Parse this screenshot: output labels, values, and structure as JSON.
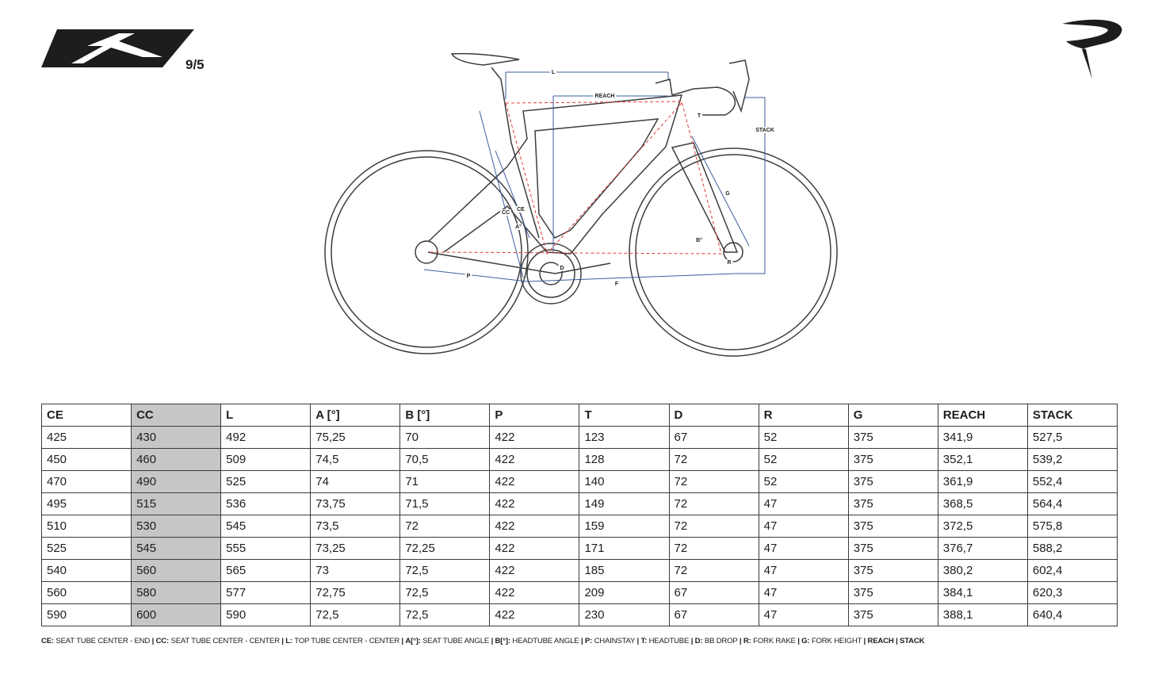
{
  "header": {
    "model_number": "9/5"
  },
  "diagram": {
    "labels": [
      "L",
      "REACH",
      "STACK",
      "T",
      "G",
      "CC",
      "CE",
      "A°",
      "B°",
      "P",
      "F",
      "D",
      "R"
    ]
  },
  "table": {
    "headers": [
      "CE",
      "CC",
      "L",
      "A [°]",
      "B [°]",
      "P",
      "T",
      "D",
      "R",
      "G",
      "REACH",
      "STACK"
    ],
    "rows": [
      [
        "425",
        "430",
        "492",
        "75,25",
        "70",
        "422",
        "123",
        "67",
        "52",
        "375",
        "341,9",
        "527,5"
      ],
      [
        "450",
        "460",
        "509",
        "74,5",
        "70,5",
        "422",
        "128",
        "72",
        "52",
        "375",
        "352,1",
        "539,2"
      ],
      [
        "470",
        "490",
        "525",
        "74",
        "71",
        "422",
        "140",
        "72",
        "52",
        "375",
        "361,9",
        "552,4"
      ],
      [
        "495",
        "515",
        "536",
        "73,75",
        "71,5",
        "422",
        "149",
        "72",
        "47",
        "375",
        "368,5",
        "564,4"
      ],
      [
        "510",
        "530",
        "545",
        "73,5",
        "72",
        "422",
        "159",
        "72",
        "47",
        "375",
        "372,5",
        "575,8"
      ],
      [
        "525",
        "545",
        "555",
        "73,25",
        "72,25",
        "422",
        "171",
        "72",
        "47",
        "375",
        "376,7",
        "588,2"
      ],
      [
        "540",
        "560",
        "565",
        "73",
        "72,5",
        "422",
        "185",
        "72",
        "47",
        "375",
        "380,2",
        "602,4"
      ],
      [
        "560",
        "580",
        "577",
        "72,75",
        "72,5",
        "422",
        "209",
        "67",
        "47",
        "375",
        "384,1",
        "620,3"
      ],
      [
        "590",
        "600",
        "590",
        "72,5",
        "72,5",
        "422",
        "230",
        "67",
        "47",
        "375",
        "388,1",
        "640,4"
      ]
    ]
  },
  "legend": {
    "separator": "|",
    "items": [
      {
        "key": "CE:",
        "text": "SEAT TUBE CENTER - END"
      },
      {
        "key": "CC:",
        "text": "SEAT TUBE CENTER - CENTER"
      },
      {
        "key": "L:",
        "text": "TOP TUBE CENTER - CENTER"
      },
      {
        "key": "A[°]:",
        "text": "SEAT TUBE ANGLE"
      },
      {
        "key": "B[°]:",
        "text": "HEADTUBE ANGLE"
      },
      {
        "key": "P:",
        "text": "CHAINSTAY"
      },
      {
        "key": "T:",
        "text": "HEADTUBE"
      },
      {
        "key": "D:",
        "text": "BB DROP"
      },
      {
        "key": "R:",
        "text": "FORK RAKE"
      },
      {
        "key": "G:",
        "text": "FORK HEIGHT"
      },
      {
        "key": "REACH"
      },
      {
        "key": "STACK"
      }
    ]
  }
}
